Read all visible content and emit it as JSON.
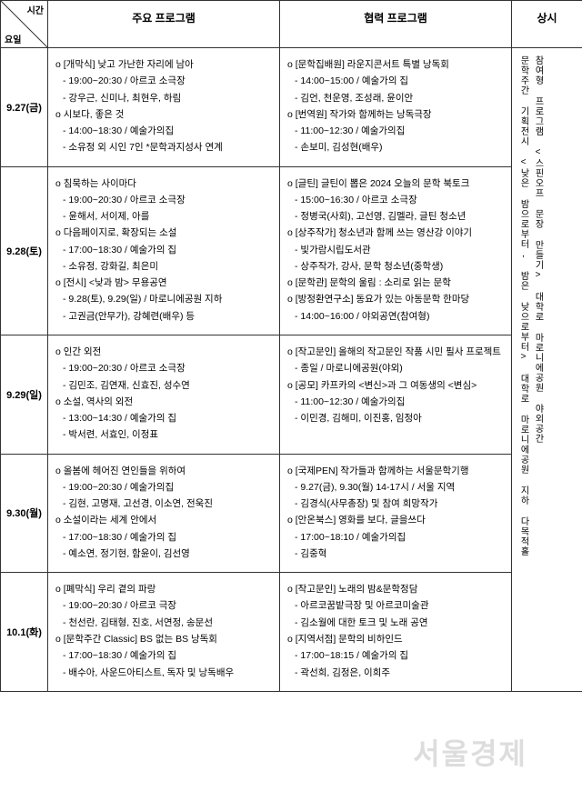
{
  "header": {
    "diag_top": "시간",
    "diag_bottom": "요일",
    "col_main": "주요 프로그램",
    "col_coop": "협력 프로그램",
    "col_always": "상시"
  },
  "rows": [
    {
      "date": "9.27(금)",
      "main": [
        {
          "t": "main",
          "text": "o [개막식] 낮고 가난한 자리에 남아"
        },
        {
          "t": "sub",
          "text": "- 19:00~20:30 / 아르코 소극장"
        },
        {
          "t": "sub",
          "text": "- 강우근, 신미나, 최현우, 하림"
        },
        {
          "t": "main",
          "text": "o 시보다, 좋은 것"
        },
        {
          "t": "sub",
          "text": "- 14:00~18:30 / 예술가의집"
        },
        {
          "t": "sub",
          "text": "- 소유정 외 시인 7인 *문학과지성사 연계"
        }
      ],
      "coop": [
        {
          "t": "main",
          "text": "o [문학집배원] 라운지콘서트 특별 낭독회"
        },
        {
          "t": "sub",
          "text": "- 14:00~15:00 / 예술가의 집"
        },
        {
          "t": "sub",
          "text": "- 김언, 천운영, 조성래, 윤이안"
        },
        {
          "t": "main",
          "text": "o [번역원] 작가와 함께하는 낭독극장"
        },
        {
          "t": "sub",
          "text": "- 11:00~12:30 / 예술가의집"
        },
        {
          "t": "sub",
          "text": "- 손보미, 김성현(배우)"
        }
      ]
    },
    {
      "date": "9.28(토)",
      "main": [
        {
          "t": "main",
          "text": "o 침묵하는 사이마다"
        },
        {
          "t": "sub",
          "text": "- 19:00~20:30 / 아르코 소극장"
        },
        {
          "t": "sub",
          "text": "- 윤해서, 서이제, 아를"
        },
        {
          "t": "main",
          "text": "o 다음페이지로, 확장되는 소설"
        },
        {
          "t": "sub",
          "text": "- 17:00~18:30 / 예술가의 집"
        },
        {
          "t": "sub",
          "text": "- 소유정, 강화길, 최은미"
        },
        {
          "t": "main",
          "text": "o [전시] <낮과 밤> 무용공연"
        },
        {
          "t": "sub",
          "text": "- 9.28(토), 9.29(일) / 마로니에공원 지하"
        },
        {
          "t": "sub",
          "text": "- 고권금(안무가), 강혜련(배우) 등"
        }
      ],
      "coop": [
        {
          "t": "main",
          "text": "o [글틴] 글틴이 뽑은 2024 오늘의 문학 북토크"
        },
        {
          "t": "sub",
          "text": "- 15:00~16:30 / 아르코 소극장"
        },
        {
          "t": "sub",
          "text": "- 정병국(사회), 고선영, 김멜라, 글틴 청소년"
        },
        {
          "t": "main",
          "text": "o [상주작가] 청소년과 함께 쓰는 영산강 이야기"
        },
        {
          "t": "sub",
          "text": "- 빛가람시립도서관"
        },
        {
          "t": "sub",
          "text": "- 상주작가, 강사, 문학 청소년(중학생)"
        },
        {
          "t": "main",
          "text": "o [문학관] 문학의 울림 : 소리로 읽는 문학"
        },
        {
          "t": "main",
          "text": "o [방정환연구소] 동요가 있는 아동문학 한마당"
        },
        {
          "t": "sub",
          "text": "- 14:00~16:00 / 야외공연(참여형)"
        }
      ]
    },
    {
      "date": "9.29(일)",
      "main": [
        {
          "t": "main",
          "text": "o 인간 외전"
        },
        {
          "t": "sub",
          "text": "- 19:00~20:30 / 아르코 소극장"
        },
        {
          "t": "sub",
          "text": "- 김민조, 김연재, 신효진, 성수연"
        },
        {
          "t": "main",
          "text": "o 소설, 역사의 외전"
        },
        {
          "t": "sub",
          "text": "- 13:00~14:30 / 예술가의 집"
        },
        {
          "t": "sub",
          "text": "- 박서련, 서효인, 이정표"
        }
      ],
      "coop": [
        {
          "t": "main",
          "text": "o [작고문인] 올해의 작고문인 작품 시민 필사 프로젝트"
        },
        {
          "t": "sub",
          "text": "- 종일 / 마로니에공원(야외)"
        },
        {
          "t": "main",
          "text": "o [공모] 카프카의 <변신>과 그 여동생의 <변심>"
        },
        {
          "t": "sub",
          "text": "- 11:00~12:30 / 예술가의집"
        },
        {
          "t": "sub",
          "text": "- 이민경, 김해미, 이진홍, 임정아"
        }
      ]
    },
    {
      "date": "9.30(월)",
      "main": [
        {
          "t": "main",
          "text": "o 올봄에 헤어진 연인들을 위하여"
        },
        {
          "t": "sub",
          "text": "- 19:00~20:30 / 예술가의집"
        },
        {
          "t": "sub",
          "text": "- 김현, 고명재, 고선경, 이소연, 전욱진"
        },
        {
          "t": "main",
          "text": "o 소설이라는 세계 안에서"
        },
        {
          "t": "sub",
          "text": "- 17:00~18:30 / 예술가의 집"
        },
        {
          "t": "sub",
          "text": "- 예소연, 정기현, 함윤이, 김선영"
        }
      ],
      "coop": [
        {
          "t": "main",
          "text": "o [국제PEN] 작가들과 함께하는 서울문학기행"
        },
        {
          "t": "sub",
          "text": "- 9.27(금), 9.30(월) 14-17시 / 서울 지역"
        },
        {
          "t": "sub",
          "text": "- 김경식(사무총장) 및 참여 희망작가"
        },
        {
          "t": "main",
          "text": "o [안온북스] 영화를 보다, 글을쓰다"
        },
        {
          "t": "sub",
          "text": "- 17:00~18:10 / 예술가의집"
        },
        {
          "t": "sub",
          "text": "- 김중혁"
        }
      ]
    },
    {
      "date": "10.1(화)",
      "main": [
        {
          "t": "main",
          "text": "o [폐막식] 우리 곁의 파랑"
        },
        {
          "t": "sub",
          "text": "- 19:00~20:30 / 아르코 극장"
        },
        {
          "t": "sub",
          "text": "- 천선란, 김태형, 진호, 서연정, 송문선"
        },
        {
          "t": "main",
          "text": "o [문학주간 Classic] BS 없는 BS 낭독회"
        },
        {
          "t": "sub",
          "text": "- 17:00~18:30 / 예술가의 집"
        },
        {
          "t": "sub",
          "text": "- 배수아, 사운드아티스트, 독자 및 낭독배우"
        }
      ],
      "coop": [
        {
          "t": "main",
          "text": "o [작고문인] 노래의 밤&문학정담"
        },
        {
          "t": "sub",
          "text": "- 아르코꿈밭극장 및 아르코미술관"
        },
        {
          "t": "sub",
          "text": "- 김소월에 대한 토크 및 노래 공연"
        },
        {
          "t": "main",
          "text": "o [지역서점] 문학의 비하인드"
        },
        {
          "t": "sub",
          "text": "- 17:00~18:15 / 예술가의 집"
        },
        {
          "t": "sub",
          "text": "- 곽선희, 김정은, 이희주"
        }
      ]
    }
  ],
  "always": {
    "line1": "참여형 프로그램 <스핀오프 문장 만들기> 대학로 마로니에공원 야외공간",
    "line2": "문학주간 기획전시 <낮은 밤으로부터, 밤은 낮으로부터> 대학로 마로니에공원 지하 다목적홀"
  },
  "watermark": "서울경제"
}
